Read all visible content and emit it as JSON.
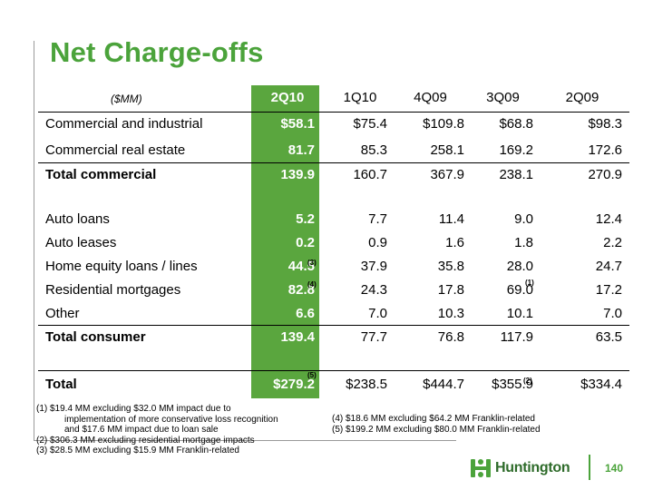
{
  "title": "Net Charge-offs",
  "units_label": "($MM)",
  "columns": [
    "2Q10",
    "1Q10",
    "4Q09",
    "3Q09",
    "2Q09"
  ],
  "rows": [
    {
      "label": "Commercial and industrial",
      "values": [
        "$58.1",
        "$75.4",
        "$109.8",
        "$68.8",
        "$98.3"
      ]
    },
    {
      "label": "Commercial real estate",
      "values": [
        "81.7",
        "85.3",
        "258.1",
        "169.2",
        "172.6"
      ]
    },
    {
      "label": "Total commercial",
      "values": [
        "139.9",
        "160.7",
        "367.9",
        "238.1",
        "270.9"
      ]
    },
    {
      "label": "Auto loans",
      "values": [
        "5.2",
        "7.7",
        "11.4",
        "9.0",
        "12.4"
      ]
    },
    {
      "label": "Auto leases",
      "values": [
        "0.2",
        "0.9",
        "1.6",
        "1.8",
        "2.2"
      ]
    },
    {
      "label": "Home equity loans / lines",
      "values": [
        "44.5",
        "37.9",
        "35.8",
        "28.0",
        "24.7"
      ]
    },
    {
      "label": "Residential mortgages",
      "values": [
        "82.8",
        "24.3",
        "17.8",
        "69.0",
        "17.2"
      ]
    },
    {
      "label": "Other",
      "values": [
        "6.6",
        "7.0",
        "10.3",
        "10.1",
        "7.0"
      ]
    },
    {
      "label": "Total consumer",
      "values": [
        "139.4",
        "77.7",
        "76.8",
        "117.9",
        "63.5"
      ]
    },
    {
      "label": "Total",
      "values": [
        "$279.2",
        "$238.5",
        "$444.7",
        "$355.9",
        "$334.4"
      ]
    }
  ],
  "superscripts": {
    "home_equity_2q10": "(3)",
    "residential_2q10": "(4)",
    "residential_3q09": "(1)",
    "total_2q10": "(5)",
    "total_3q09": "(2)"
  },
  "footnotes_left": {
    "f1_line1": "(1) $19.4 MM excluding $32.0 MM impact due to",
    "f1_line2": "implementation of more conservative loss recognition",
    "f1_line3": "and $17.6 MM impact due to loan sale",
    "f2": "(2) $306.3 MM excluding residential mortgage impacts",
    "f3": "(3) $28.5 MM excluding $15.9 MM Franklin-related"
  },
  "footnotes_right": {
    "f4": "(4) $18.6 MM excluding $64.2 MM Franklin-related",
    "f5": "(5) $199.2 MM excluding $80.0 MM Franklin-related"
  },
  "logo_text": "Huntington",
  "page_number": "140",
  "colors": {
    "accent": "#4ba33b",
    "highlight": "#5aa63e",
    "logo_text": "#2e6b2a"
  }
}
